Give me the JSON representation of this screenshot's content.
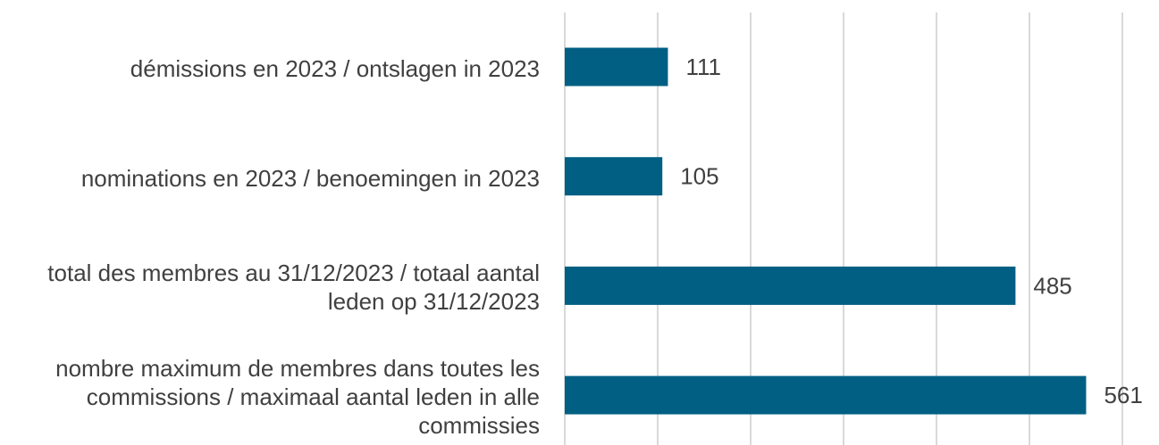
{
  "chart_data": {
    "type": "barh",
    "categories": [
      "démissions en 2023 / ontslagen in 2023",
      "nominations en 2023 / benoemingen in 2023",
      "total des membres au 31/12/2023 / totaal aantal leden op 31/12/2023",
      "nombre maximum de membres dans toutes les commissions / maximaal aantal leden in alle commissies"
    ],
    "values": [
      111,
      105,
      485,
      561
    ],
    "color": "#005f83",
    "xlim": [
      0,
      600
    ],
    "xticks": [
      0,
      100,
      200,
      300,
      400,
      500,
      600
    ],
    "grid": true
  }
}
